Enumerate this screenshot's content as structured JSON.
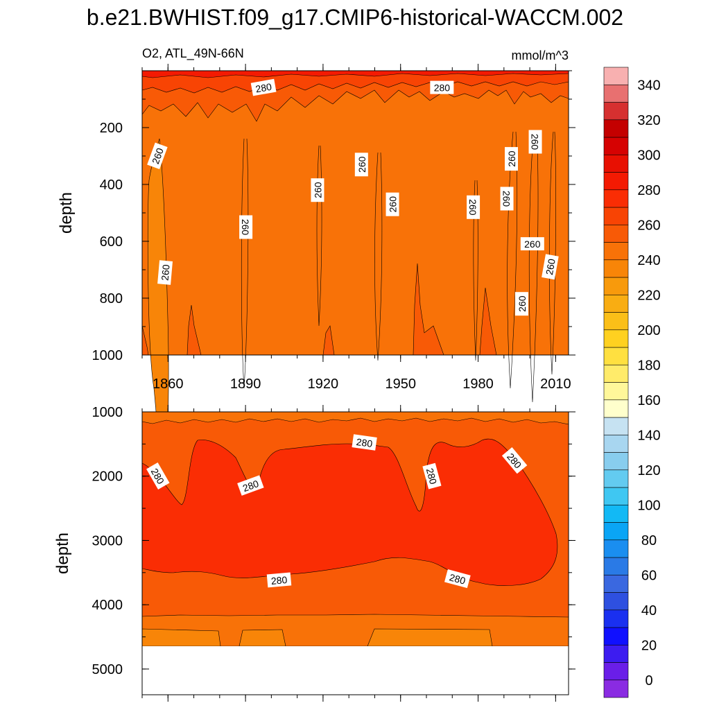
{
  "chart_data": {
    "type": "contour",
    "title": "b.e21.BWHIST.f09_g17.CMIP6-historical-WACCM.002",
    "subtitle_left": "O2, ATL_49N-66N",
    "subtitle_right": "mmol/m^3",
    "panels": [
      {
        "name": "upper-panel",
        "ylabel": "depth",
        "xlim": [
          1850,
          2015
        ],
        "ylim": [
          1000,
          0
        ],
        "xticks": [
          1860,
          1890,
          1920,
          1950,
          1980,
          2010
        ],
        "yticks": [
          200,
          400,
          600,
          800,
          1000
        ],
        "background_level": 255,
        "contour_labels": [
          {
            "text": "280",
            "x": 1897,
            "y": 60,
            "angle": -10
          },
          {
            "text": "280",
            "x": 1966,
            "y": 60,
            "angle": 0
          },
          {
            "text": "260",
            "x": 1856,
            "y": 300,
            "angle": -70
          },
          {
            "text": "260",
            "x": 1859,
            "y": 710,
            "angle": -85
          },
          {
            "text": "260",
            "x": 1890,
            "y": 550,
            "angle": 90
          },
          {
            "text": "260",
            "x": 1918,
            "y": 420,
            "angle": -90
          },
          {
            "text": "260",
            "x": 1935,
            "y": 330,
            "angle": -90
          },
          {
            "text": "260",
            "x": 1947,
            "y": 470,
            "angle": -90
          },
          {
            "text": "260",
            "x": 1978,
            "y": 480,
            "angle": 90
          },
          {
            "text": "260",
            "x": 1991,
            "y": 450,
            "angle": 90
          },
          {
            "text": "260",
            "x": 1993,
            "y": 310,
            "angle": -90
          },
          {
            "text": "260",
            "x": 2002,
            "y": 250,
            "angle": 90
          },
          {
            "text": "260",
            "x": 2001,
            "y": 610,
            "angle": 0
          },
          {
            "text": "260",
            "x": 1997,
            "y": 820,
            "angle": -90
          },
          {
            "text": "260",
            "x": 2008,
            "y": 690,
            "angle": -80
          }
        ]
      },
      {
        "name": "lower-panel",
        "ylabel": "depth",
        "xlim": [
          1850,
          2015
        ],
        "ylim": [
          5400,
          1000
        ],
        "yticks": [
          1000,
          2000,
          3000,
          4000,
          5000
        ],
        "bottom_depth": 4630,
        "contour_labels": [
          {
            "text": "280",
            "x": 1856,
            "y": 2000,
            "angle": 60
          },
          {
            "text": "280",
            "x": 1892,
            "y": 2150,
            "angle": -20
          },
          {
            "text": "280",
            "x": 1936,
            "y": 1480,
            "angle": 8
          },
          {
            "text": "280",
            "x": 1962,
            "y": 2000,
            "angle": 75
          },
          {
            "text": "280",
            "x": 1994,
            "y": 1760,
            "angle": 50
          },
          {
            "text": "280",
            "x": 1903,
            "y": 3620,
            "angle": -5
          },
          {
            "text": "280",
            "x": 1972,
            "y": 3600,
            "angle": 15
          }
        ]
      }
    ],
    "colorbar": {
      "labels": [
        "0",
        "20",
        "40",
        "60",
        "80",
        "100",
        "120",
        "140",
        "160",
        "180",
        "200",
        "220",
        "240",
        "260",
        "280",
        "300",
        "320",
        "340"
      ],
      "colors": [
        "#8a2be2",
        "#6a1ee8",
        "#3d1cf0",
        "#1010ff",
        "#1a30f0",
        "#2e50e0",
        "#3a68e0",
        "#2a7ae6",
        "#1a8ef0",
        "#0aa5f5",
        "#12b9f5",
        "#3fc7f2",
        "#63cbf0",
        "#88cdee",
        "#a8d6f0",
        "#c6e2f2",
        "#ffffcc",
        "#fff79a",
        "#ffeb6a",
        "#ffe040",
        "#ffd120",
        "#fbbf18",
        "#f9ad12",
        "#f89a0c",
        "#f88508",
        "#f87208",
        "#f85a06",
        "#f84404",
        "#fa2d04",
        "#f41a02",
        "#e81002",
        "#d60202",
        "#c40000",
        "#d63030",
        "#e87070",
        "#f8b0b0"
      ]
    },
    "levels": {
      "l255": "#f87208",
      "l265": "#f85a06",
      "l275": "#f84404",
      "l285": "#fa2d04",
      "l295": "#f41a02",
      "l245": "#f88508",
      "l235": "#f89a0c"
    }
  }
}
